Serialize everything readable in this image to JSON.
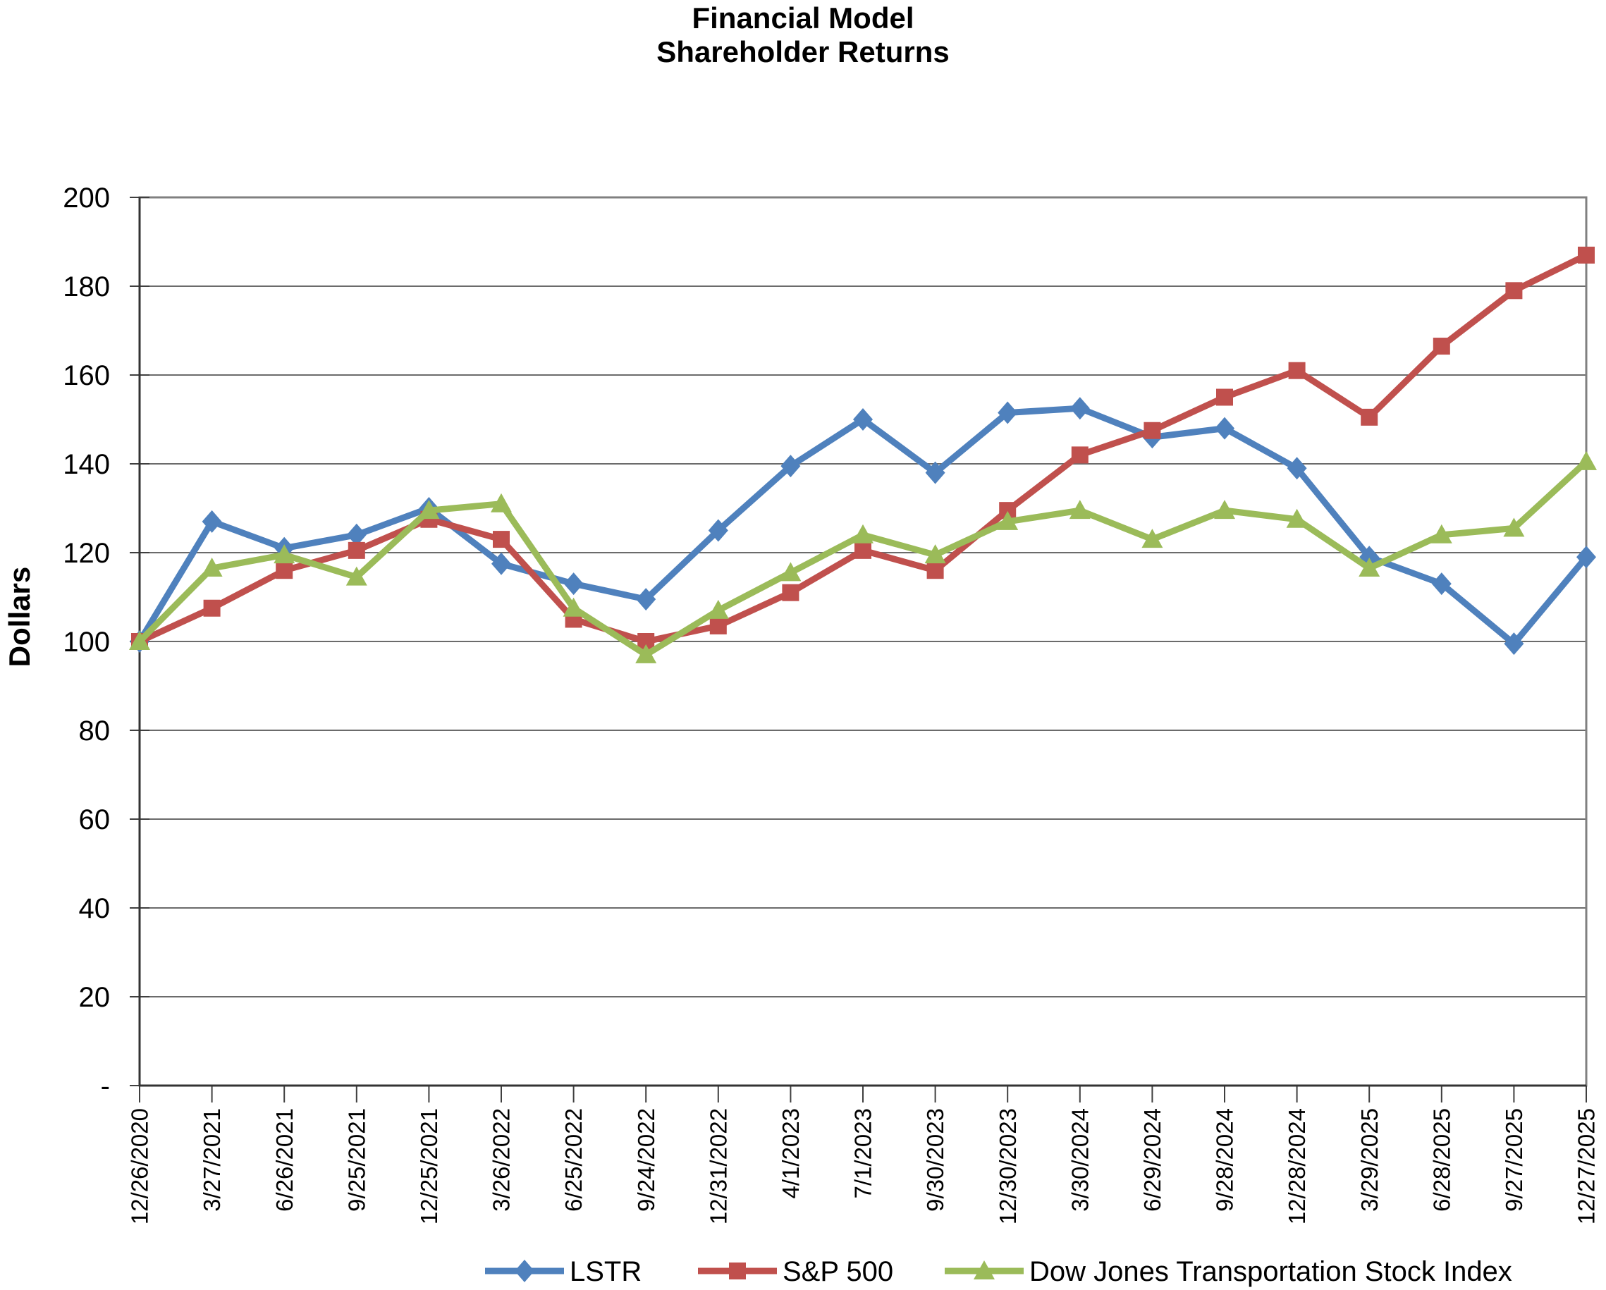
{
  "title": {
    "line1": "Financial Model",
    "line2": "Shareholder Returns"
  },
  "chart_data": {
    "type": "line",
    "title": "Financial Model Shareholder Returns",
    "xlabel": "",
    "ylabel": "Dollars",
    "ylim": [
      0,
      200
    ],
    "ytick_step": 20,
    "ytick_labels": [
      "-",
      "20",
      "40",
      "60",
      "80",
      "100",
      "120",
      "140",
      "160",
      "180",
      "200"
    ],
    "grid": true,
    "legend_position": "bottom",
    "categories": [
      "12/26/2020",
      "3/27/2021",
      "6/26/2021",
      "9/25/2021",
      "12/25/2021",
      "3/26/2022",
      "6/25/2022",
      "9/24/2022",
      "12/31/2022",
      "4/1/2023",
      "7/1/2023",
      "9/30/2023",
      "12/30/2023",
      "3/30/2024",
      "6/29/2024",
      "9/28/2024",
      "12/28/2024",
      "3/29/2025",
      "6/28/2025",
      "9/27/2025",
      "12/27/2025"
    ],
    "series": [
      {
        "name": "LSTR",
        "color": "#4F81BD",
        "marker": "diamond",
        "values": [
          100,
          127,
          121,
          124,
          130,
          117.5,
          113,
          109.5,
          125,
          139.5,
          150,
          138,
          151.5,
          152.5,
          146,
          148,
          139,
          119,
          113,
          99.5,
          119
        ]
      },
      {
        "name": "S&P 500",
        "color": "#C0504D",
        "marker": "square",
        "values": [
          100,
          107.5,
          116,
          120.5,
          127.5,
          123,
          105,
          100,
          103.5,
          111,
          120.5,
          116,
          129.5,
          142,
          147.5,
          155,
          161,
          150.5,
          166.5,
          179,
          187
        ]
      },
      {
        "name": "Dow Jones Transportation Stock Index",
        "color": "#9BBB59",
        "marker": "triangle",
        "values": [
          100,
          116.5,
          119.5,
          114.5,
          129.5,
          131,
          107.5,
          97,
          107,
          115.5,
          124,
          119.5,
          127,
          129.5,
          123,
          129.5,
          127.5,
          116.5,
          124,
          125.5,
          140.5
        ]
      }
    ]
  }
}
